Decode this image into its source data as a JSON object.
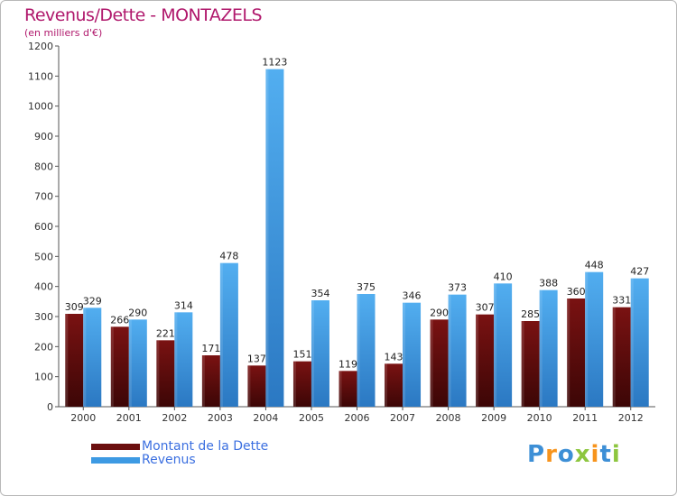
{
  "title": "Revenus/Dette - MONTAZELS",
  "subtitle": "(en milliers d'€)",
  "colors": {
    "dette": "#6b0f0f",
    "revenus": "#3d9ae3",
    "title": "#b0186c",
    "legend_text": "#3b6fe0"
  },
  "legend": [
    {
      "label": "Montant de la Dette",
      "color": "#6b0f0f"
    },
    {
      "label": "Revenus",
      "color": "#3d9ae3"
    }
  ],
  "logo": {
    "letters": [
      "P",
      "r",
      "o",
      "x",
      "i",
      "t",
      "i"
    ],
    "colors": [
      "#3d8fd6",
      "#f7941d",
      "#3d8fd6",
      "#8dc63f",
      "#f7941d",
      "#3d8fd6",
      "#8dc63f"
    ]
  },
  "chart_data": {
    "type": "bar",
    "title": "Revenus/Dette - MONTAZELS",
    "ylabel": "(en milliers d'€)",
    "xlabel": "",
    "ylim": [
      0,
      1200
    ],
    "yticks": [
      0,
      100,
      200,
      300,
      400,
      500,
      600,
      700,
      800,
      900,
      1000,
      1100,
      1200
    ],
    "categories": [
      "2000",
      "2001",
      "2002",
      "2003",
      "2004",
      "2005",
      "2006",
      "2007",
      "2008",
      "2009",
      "2010",
      "2011",
      "2012"
    ],
    "series": [
      {
        "name": "Montant de la Dette",
        "color": "#6b0f0f",
        "values": [
          309,
          266,
          221,
          171,
          137,
          151,
          119,
          143,
          290,
          307,
          285,
          360,
          331
        ]
      },
      {
        "name": "Revenus",
        "color": "#3d9ae3",
        "values": [
          329,
          290,
          314,
          478,
          1123,
          354,
          375,
          346,
          373,
          410,
          388,
          448,
          427
        ]
      }
    ],
    "grid": false,
    "legend_position": "bottom-left"
  }
}
